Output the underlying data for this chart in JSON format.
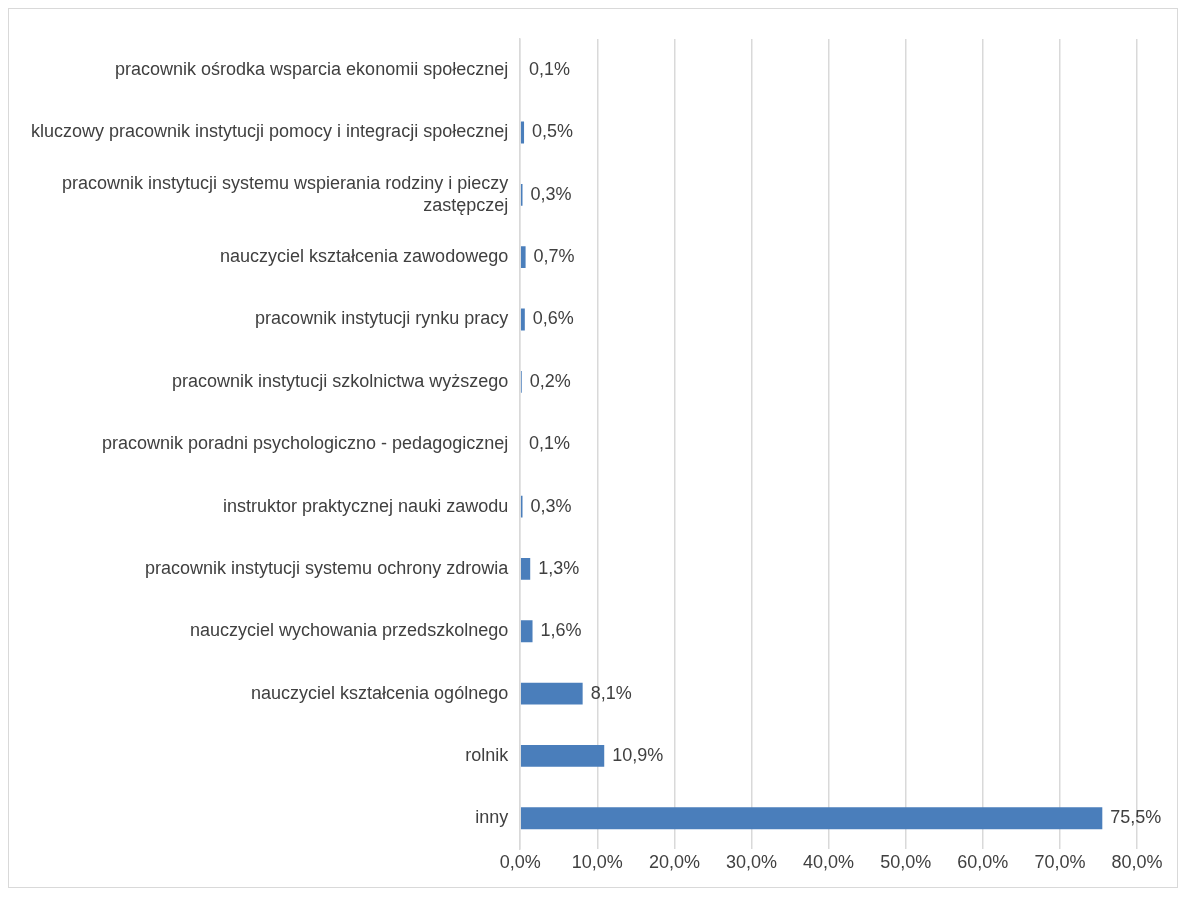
{
  "chart_data": {
    "type": "bar",
    "orientation": "horizontal",
    "categories": [
      "pracownik ośrodka wsparcia ekonomii społecznej",
      "kluczowy pracownik instytucji pomocy i integracji społecznej",
      "pracownik instytucji systemu wspierania rodziny i pieczy zastępczej",
      "nauczyciel kształcenia zawodowego",
      "pracownik instytucji rynku pracy",
      "pracownik instytucji szkolnictwa wyższego",
      "pracownik poradni psychologiczno - pedagogicznej",
      "instruktor praktycznej nauki zawodu",
      "pracownik instytucji systemu ochrony zdrowia",
      "nauczyciel wychowania przedszkolnego",
      "nauczyciel kształcenia ogólnego",
      "rolnik",
      "inny"
    ],
    "values": [
      0.1,
      0.5,
      0.3,
      0.7,
      0.6,
      0.2,
      0.1,
      0.3,
      1.3,
      1.6,
      8.1,
      10.9,
      75.5
    ],
    "value_labels": [
      "0,1%",
      "0,5%",
      "0,3%",
      "0,7%",
      "0,6%",
      "0,2%",
      "0,1%",
      "0,3%",
      "1,3%",
      "1,6%",
      "8,1%",
      "10,9%",
      "75,5%"
    ],
    "color": "#4a7ebb",
    "xlim": [
      0,
      80
    ],
    "xticks": [
      {
        "value": 0,
        "label": "0,0%"
      },
      {
        "value": 10,
        "label": "10,0%"
      },
      {
        "value": 20,
        "label": "20,0%"
      },
      {
        "value": 30,
        "label": "30,0%"
      },
      {
        "value": 40,
        "label": "40,0%"
      },
      {
        "value": 50,
        "label": "50,0%"
      },
      {
        "value": 60,
        "label": "60,0%"
      },
      {
        "value": 70,
        "label": "70,0%"
      },
      {
        "value": 80,
        "label": "80,0%"
      }
    ],
    "grid": "x",
    "legend": false
  }
}
